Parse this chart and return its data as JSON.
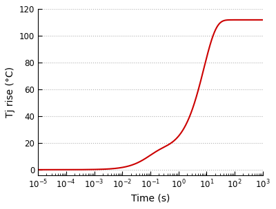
{
  "title": "",
  "xlabel": "Time (s)",
  "ylabel": "Tj rise (°C)",
  "xlim_log": [
    -5,
    3
  ],
  "ylim": [
    -4,
    120
  ],
  "yticks": [
    0,
    20,
    40,
    60,
    80,
    100,
    120
  ],
  "line_color": "#cc0000",
  "line_width": 1.5,
  "background_color": "#ffffff",
  "grid_color": "#b0b0b0",
  "grid_style": ":",
  "curve_params": {
    "a1": 13.5,
    "tau1": 0.08,
    "a2": 98.5,
    "tau2": 8.0,
    "power": 0.3
  }
}
